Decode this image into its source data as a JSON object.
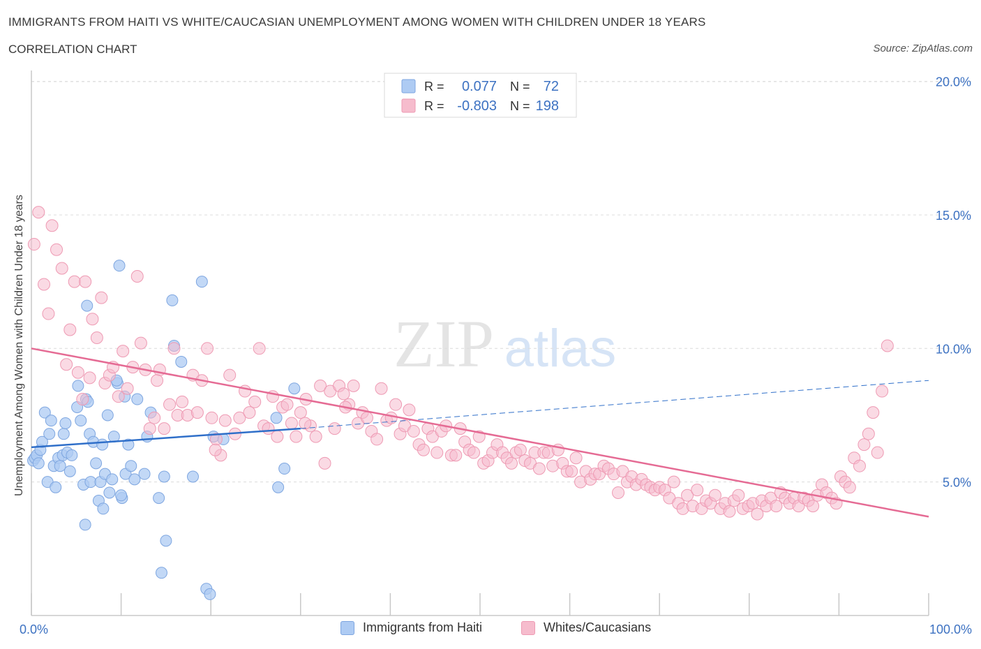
{
  "header": {
    "title": "IMMIGRANTS FROM HAITI VS WHITE/CAUCASIAN UNEMPLOYMENT AMONG WOMEN WITH CHILDREN UNDER 18 YEARS",
    "subtitle": "CORRELATION CHART",
    "source": "Source: ZipAtlas.com"
  },
  "watermark": {
    "zip": "ZIP",
    "atlas": "atlas"
  },
  "legend_box": {
    "rows": [
      {
        "r_label": "R =",
        "r_value": "0.077",
        "n_label": "N =",
        "n_value": "72"
      },
      {
        "r_label": "R =",
        "r_value": "-0.803",
        "n_label": "N =",
        "n_value": "198"
      }
    ]
  },
  "bottom_legend": {
    "haiti": "Immigrants from Haiti",
    "white": "Whites/Caucasians"
  },
  "colors": {
    "haiti_fill": "#aecbf3",
    "haiti_stroke": "#7ea6e0",
    "haiti_line": "#2f6fc9",
    "white_fill": "#f6bccd",
    "white_stroke": "#ee9ab3",
    "white_line": "#e56b94",
    "tick_label": "#3d72c2",
    "grid": "#dcdcdc",
    "axis": "#c8c8c8"
  },
  "chart_data": {
    "type": "scatter",
    "title": "IMMIGRANTS FROM HAITI VS WHITE/CAUCASIAN UNEMPLOYMENT AMONG WOMEN WITH CHILDREN UNDER 18 YEARS",
    "xlabel": "",
    "ylabel": "Unemployment Among Women with Children Under 18 years",
    "xlim": [
      0,
      100
    ],
    "ylim": [
      0,
      20.8
    ],
    "x_tick_labels": [
      {
        "value": 0,
        "label": "0.0%"
      },
      {
        "value": 100,
        "label": "100.0%"
      }
    ],
    "y_tick_labels": [
      {
        "value": 5,
        "label": "5.0%"
      },
      {
        "value": 10,
        "label": "10.0%"
      },
      {
        "value": 15,
        "label": "15.0%"
      },
      {
        "value": 20,
        "label": "20.0%"
      }
    ],
    "grid": true,
    "legend_position": "top-center",
    "series": [
      {
        "name": "Immigrants from Haiti",
        "R": 0.077,
        "N": 72,
        "trend": {
          "x_start": 0,
          "y_start": 6.3,
          "x_solid_end": 30,
          "y_solid_end": 7.0,
          "x_end": 100,
          "y_end": 8.8
        },
        "points": [
          [
            0.2,
            5.8
          ],
          [
            0.4,
            5.9
          ],
          [
            0.6,
            6.0
          ],
          [
            0.8,
            5.7
          ],
          [
            1.0,
            6.2
          ],
          [
            1.2,
            6.5
          ],
          [
            1.5,
            7.6
          ],
          [
            1.8,
            5.0
          ],
          [
            2.0,
            6.8
          ],
          [
            2.2,
            7.3
          ],
          [
            2.5,
            5.6
          ],
          [
            2.7,
            4.8
          ],
          [
            3.0,
            5.9
          ],
          [
            3.2,
            5.6
          ],
          [
            3.5,
            6.0
          ],
          [
            3.6,
            6.8
          ],
          [
            3.8,
            7.2
          ],
          [
            4.0,
            6.1
          ],
          [
            4.3,
            5.4
          ],
          [
            4.5,
            6.0
          ],
          [
            5.1,
            7.8
          ],
          [
            5.2,
            8.6
          ],
          [
            5.5,
            7.3
          ],
          [
            5.8,
            4.9
          ],
          [
            6.1,
            8.1
          ],
          [
            6.2,
            11.6
          ],
          [
            6.3,
            8.0
          ],
          [
            6.5,
            6.8
          ],
          [
            6.6,
            5.0
          ],
          [
            6.9,
            6.5
          ],
          [
            7.2,
            5.7
          ],
          [
            7.5,
            4.3
          ],
          [
            7.7,
            5.0
          ],
          [
            7.9,
            6.4
          ],
          [
            8.2,
            5.3
          ],
          [
            8.5,
            7.5
          ],
          [
            8.7,
            4.6
          ],
          [
            9.2,
            6.7
          ],
          [
            9.6,
            8.7
          ],
          [
            9.8,
            13.1
          ],
          [
            10.1,
            4.4
          ],
          [
            10.4,
            8.2
          ],
          [
            10.5,
            5.3
          ],
          [
            10.8,
            6.4
          ],
          [
            11.1,
            5.6
          ],
          [
            11.5,
            5.1
          ],
          [
            11.8,
            8.1
          ],
          [
            12.6,
            5.3
          ],
          [
            12.9,
            6.7
          ],
          [
            13.3,
            7.6
          ],
          [
            14.2,
            4.4
          ],
          [
            14.8,
            5.2
          ],
          [
            15.7,
            11.8
          ],
          [
            15.9,
            10.1
          ],
          [
            16.7,
            9.5
          ],
          [
            18.0,
            5.2
          ],
          [
            19.0,
            12.5
          ],
          [
            19.5,
            1.0
          ],
          [
            20.3,
            6.7
          ],
          [
            21.4,
            6.6
          ],
          [
            27.3,
            7.4
          ],
          [
            28.2,
            5.5
          ],
          [
            27.5,
            4.8
          ],
          [
            29.3,
            8.5
          ],
          [
            9.0,
            5.1
          ],
          [
            8.0,
            4.0
          ],
          [
            10.0,
            4.5
          ],
          [
            15.0,
            2.8
          ],
          [
            14.5,
            1.6
          ],
          [
            19.9,
            0.8
          ],
          [
            6.0,
            3.4
          ],
          [
            9.5,
            8.8
          ]
        ]
      },
      {
        "name": "Whites/Caucasians",
        "R": -0.803,
        "N": 198,
        "trend": {
          "x_start": 0,
          "y_start": 10.0,
          "x_end": 100,
          "y_end": 3.7
        },
        "points": [
          [
            0.3,
            13.9
          ],
          [
            0.8,
            15.1
          ],
          [
            1.4,
            12.4
          ],
          [
            1.9,
            11.3
          ],
          [
            2.3,
            14.6
          ],
          [
            2.8,
            13.7
          ],
          [
            3.4,
            13.0
          ],
          [
            3.9,
            9.4
          ],
          [
            4.3,
            10.7
          ],
          [
            4.8,
            12.5
          ],
          [
            5.2,
            9.1
          ],
          [
            5.7,
            8.1
          ],
          [
            6.0,
            12.5
          ],
          [
            6.5,
            8.9
          ],
          [
            6.8,
            11.1
          ],
          [
            7.3,
            10.4
          ],
          [
            7.8,
            11.9
          ],
          [
            8.2,
            8.7
          ],
          [
            8.7,
            9.0
          ],
          [
            9.1,
            9.3
          ],
          [
            9.7,
            8.2
          ],
          [
            10.2,
            9.9
          ],
          [
            10.7,
            8.5
          ],
          [
            11.3,
            9.3
          ],
          [
            11.8,
            12.7
          ],
          [
            12.2,
            10.2
          ],
          [
            12.7,
            9.2
          ],
          [
            13.2,
            7.0
          ],
          [
            13.7,
            7.4
          ],
          [
            14.3,
            9.2
          ],
          [
            14.8,
            7.0
          ],
          [
            15.4,
            7.9
          ],
          [
            15.9,
            10.0
          ],
          [
            16.3,
            7.5
          ],
          [
            16.8,
            8.0
          ],
          [
            17.4,
            7.5
          ],
          [
            18.0,
            9.0
          ],
          [
            18.5,
            7.6
          ],
          [
            19.0,
            8.8
          ],
          [
            19.6,
            10.0
          ],
          [
            20.1,
            7.4
          ],
          [
            20.6,
            6.6
          ],
          [
            21.1,
            6.0
          ],
          [
            21.6,
            7.3
          ],
          [
            22.1,
            9.0
          ],
          [
            22.7,
            6.8
          ],
          [
            23.2,
            7.4
          ],
          [
            23.8,
            8.4
          ],
          [
            24.3,
            7.6
          ],
          [
            24.9,
            8.0
          ],
          [
            25.4,
            10.0
          ],
          [
            25.9,
            7.1
          ],
          [
            26.4,
            7.0
          ],
          [
            26.9,
            8.2
          ],
          [
            27.4,
            6.7
          ],
          [
            28.0,
            7.8
          ],
          [
            28.5,
            7.9
          ],
          [
            29.0,
            7.2
          ],
          [
            29.5,
            6.7
          ],
          [
            30.0,
            7.6
          ],
          [
            30.6,
            8.1
          ],
          [
            31.1,
            7.1
          ],
          [
            31.7,
            6.7
          ],
          [
            32.2,
            8.6
          ],
          [
            32.7,
            5.7
          ],
          [
            33.3,
            8.4
          ],
          [
            33.8,
            7.0
          ],
          [
            34.3,
            8.6
          ],
          [
            34.8,
            8.3
          ],
          [
            35.4,
            7.9
          ],
          [
            35.9,
            8.6
          ],
          [
            36.4,
            7.2
          ],
          [
            36.9,
            7.6
          ],
          [
            37.4,
            7.4
          ],
          [
            37.9,
            6.9
          ],
          [
            38.5,
            6.6
          ],
          [
            39.0,
            8.5
          ],
          [
            39.6,
            7.3
          ],
          [
            40.1,
            7.4
          ],
          [
            40.6,
            7.9
          ],
          [
            41.1,
            6.8
          ],
          [
            41.6,
            7.1
          ],
          [
            42.1,
            7.7
          ],
          [
            42.6,
            6.9
          ],
          [
            43.2,
            6.4
          ],
          [
            43.7,
            6.2
          ],
          [
            44.2,
            7.0
          ],
          [
            44.7,
            6.7
          ],
          [
            45.2,
            6.1
          ],
          [
            45.7,
            6.9
          ],
          [
            46.2,
            7.1
          ],
          [
            46.8,
            6.0
          ],
          [
            47.3,
            6.0
          ],
          [
            47.8,
            7.0
          ],
          [
            48.3,
            6.5
          ],
          [
            48.8,
            6.2
          ],
          [
            49.3,
            6.1
          ],
          [
            49.9,
            6.7
          ],
          [
            50.4,
            5.7
          ],
          [
            50.9,
            5.8
          ],
          [
            51.4,
            6.1
          ],
          [
            51.9,
            6.4
          ],
          [
            52.5,
            6.1
          ],
          [
            53.0,
            5.9
          ],
          [
            53.5,
            5.7
          ],
          [
            54.0,
            6.1
          ],
          [
            54.5,
            6.2
          ],
          [
            55.0,
            5.8
          ],
          [
            55.6,
            5.7
          ],
          [
            56.1,
            6.1
          ],
          [
            56.6,
            5.5
          ],
          [
            57.1,
            6.1
          ],
          [
            57.6,
            6.1
          ],
          [
            58.1,
            5.6
          ],
          [
            58.7,
            6.2
          ],
          [
            59.2,
            5.7
          ],
          [
            59.7,
            5.4
          ],
          [
            60.2,
            5.4
          ],
          [
            60.7,
            5.9
          ],
          [
            61.2,
            5.0
          ],
          [
            61.8,
            5.4
          ],
          [
            62.3,
            5.1
          ],
          [
            62.8,
            5.3
          ],
          [
            63.3,
            5.3
          ],
          [
            63.8,
            5.6
          ],
          [
            64.3,
            5.5
          ],
          [
            64.9,
            5.3
          ],
          [
            65.4,
            4.6
          ],
          [
            65.9,
            5.4
          ],
          [
            66.4,
            5.0
          ],
          [
            66.9,
            5.2
          ],
          [
            67.4,
            4.9
          ],
          [
            68.0,
            5.1
          ],
          [
            68.5,
            4.9
          ],
          [
            69.0,
            4.8
          ],
          [
            69.5,
            4.7
          ],
          [
            70.0,
            4.8
          ],
          [
            70.6,
            4.7
          ],
          [
            71.1,
            4.4
          ],
          [
            71.6,
            5.0
          ],
          [
            72.1,
            4.2
          ],
          [
            72.6,
            4.0
          ],
          [
            73.1,
            4.5
          ],
          [
            73.7,
            4.1
          ],
          [
            74.2,
            4.7
          ],
          [
            74.7,
            4.0
          ],
          [
            75.2,
            4.3
          ],
          [
            75.7,
            4.2
          ],
          [
            76.2,
            4.5
          ],
          [
            76.8,
            4.0
          ],
          [
            77.3,
            4.2
          ],
          [
            77.8,
            3.9
          ],
          [
            78.3,
            4.3
          ],
          [
            78.8,
            4.5
          ],
          [
            79.3,
            4.0
          ],
          [
            79.9,
            4.1
          ],
          [
            80.4,
            4.2
          ],
          [
            80.9,
            3.8
          ],
          [
            81.4,
            4.3
          ],
          [
            81.9,
            4.1
          ],
          [
            82.4,
            4.4
          ],
          [
            83.0,
            4.1
          ],
          [
            83.5,
            4.6
          ],
          [
            84.0,
            4.4
          ],
          [
            84.5,
            4.2
          ],
          [
            85.0,
            4.4
          ],
          [
            85.5,
            4.1
          ],
          [
            86.1,
            4.4
          ],
          [
            86.6,
            4.3
          ],
          [
            87.1,
            4.1
          ],
          [
            87.6,
            4.5
          ],
          [
            88.1,
            4.9
          ],
          [
            88.6,
            4.6
          ],
          [
            89.2,
            4.4
          ],
          [
            89.7,
            4.2
          ],
          [
            90.2,
            5.2
          ],
          [
            90.7,
            5.0
          ],
          [
            91.2,
            4.8
          ],
          [
            91.7,
            5.9
          ],
          [
            92.3,
            5.6
          ],
          [
            92.8,
            6.4
          ],
          [
            93.3,
            6.8
          ],
          [
            93.8,
            7.6
          ],
          [
            94.3,
            6.1
          ],
          [
            94.8,
            8.4
          ],
          [
            95.4,
            10.1
          ],
          [
            14.0,
            8.8
          ],
          [
            20.5,
            6.2
          ],
          [
            30.5,
            7.2
          ],
          [
            35.0,
            7.8
          ]
        ]
      }
    ]
  }
}
